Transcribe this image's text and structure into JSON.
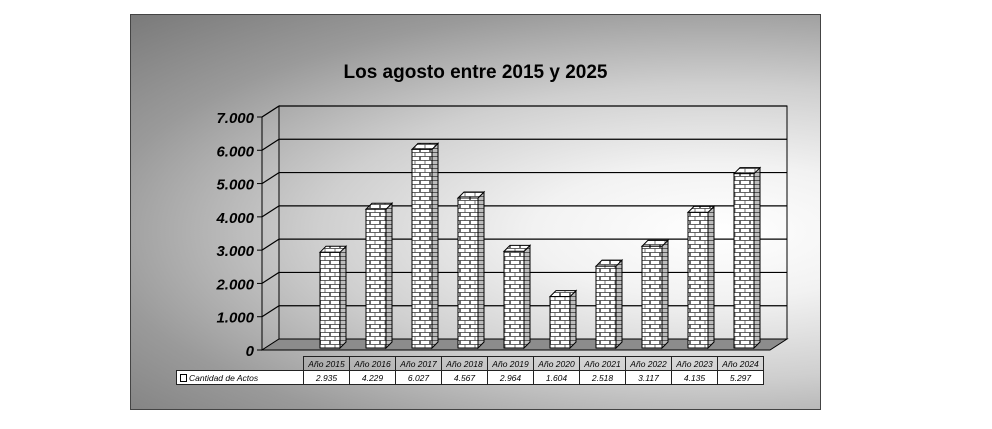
{
  "chart_data": {
    "type": "bar",
    "title": "Los agosto entre 2015 y 2025",
    "categories": [
      "Año 2015",
      "Año 2016",
      "Año 2017",
      "Año 2018",
      "Año 2019",
      "Año 2020",
      "Año 2021",
      "Año 2022",
      "Año 2023",
      "Año 2024"
    ],
    "series": [
      {
        "name": "Cantidad de Actos",
        "values": [
          2935,
          4229,
          6027,
          4567,
          2964,
          1604,
          2518,
          3117,
          4135,
          5297
        ],
        "labels": [
          "2.935",
          "4.229",
          "6.027",
          "4.567",
          "2.964",
          "1.604",
          "2.518",
          "3.117",
          "4.135",
          "5.297"
        ]
      }
    ],
    "yticks": [
      "0",
      "1.000",
      "2.000",
      "3.000",
      "4.000",
      "5.000",
      "6.000",
      "7.000"
    ],
    "ylim": [
      0,
      7000
    ],
    "grid": true,
    "legend": "data-table"
  }
}
